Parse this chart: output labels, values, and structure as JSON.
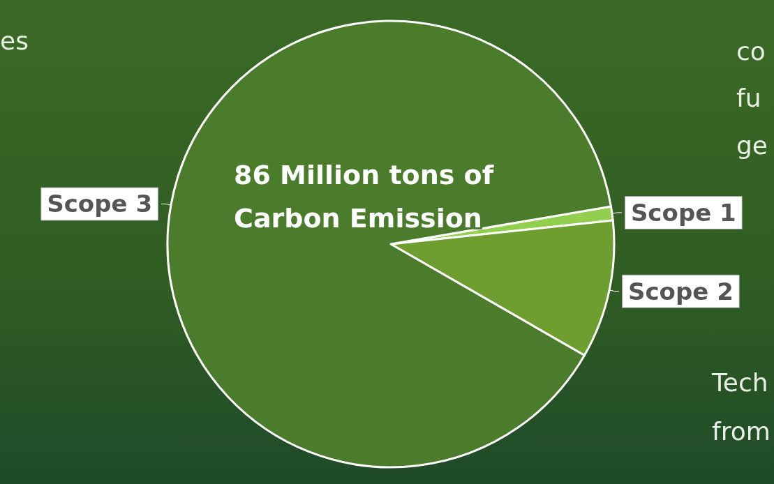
{
  "chart_data": {
    "type": "pie",
    "title": "86 Million tons of Carbon Emission",
    "categories": [
      "Scope 1",
      "Scope 2",
      "Scope 3"
    ],
    "values": [
      1,
      10,
      89
    ],
    "colors": [
      "#92cf4e",
      "#6f9e30",
      "#4a7c2b"
    ],
    "annotations": [
      "es",
      "co",
      "fu",
      "ge",
      "Tech",
      "from"
    ]
  }
}
